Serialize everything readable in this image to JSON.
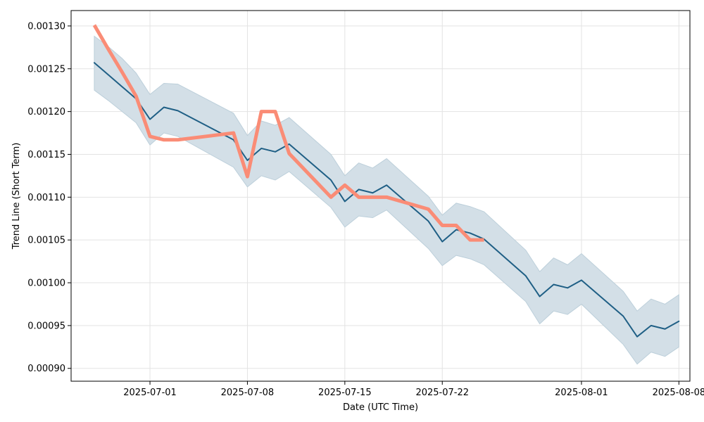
{
  "chart_data": {
    "type": "line",
    "xlabel": "Date (UTC Time)",
    "ylabel": "Trend Line (Short Term)",
    "x_range": [
      "2025-06-25T08:00",
      "2025-08-08T19:00"
    ],
    "y_range": [
      0.000885,
      0.001318
    ],
    "grid": true,
    "x_ticks": [
      "2025-07-01",
      "2025-07-08",
      "2025-07-15",
      "2025-07-22",
      "2025-08-01",
      "2025-08-08"
    ],
    "y_ticks": [
      "0.00090",
      "0.00095",
      "0.00100",
      "0.00105",
      "0.00110",
      "0.00115",
      "0.00120",
      "0.00125",
      "0.00130"
    ],
    "colors": {
      "band": "#d3dfe7",
      "band_edge": "#bccfda",
      "trend": "#1f5f85",
      "actual": "#fa8c76",
      "grid": "#e3e3e3"
    },
    "series": [
      {
        "role": "band",
        "points": [
          {
            "x": "2025-06-27",
            "low": 0.001225,
            "high": 0.001288
          },
          {
            "x": "2025-06-28",
            "low": 0.001213,
            "high": 0.001276
          },
          {
            "x": "2025-06-29",
            "low": 0.0012,
            "high": 0.001262
          },
          {
            "x": "2025-06-30",
            "low": 0.001187,
            "high": 0.001245
          },
          {
            "x": "2025-07-01",
            "low": 0.001161,
            "high": 0.00122
          },
          {
            "x": "2025-07-02",
            "low": 0.001175,
            "high": 0.001233
          },
          {
            "x": "2025-07-03",
            "low": 0.001171,
            "high": 0.001232
          },
          {
            "x": "2025-07-07",
            "low": 0.001135,
            "high": 0.001198
          },
          {
            "x": "2025-07-08",
            "low": 0.001112,
            "high": 0.001172
          },
          {
            "x": "2025-07-09",
            "low": 0.001125,
            "high": 0.001189
          },
          {
            "x": "2025-07-10",
            "low": 0.00112,
            "high": 0.001184
          },
          {
            "x": "2025-07-11",
            "low": 0.00113,
            "high": 0.001193
          },
          {
            "x": "2025-07-14",
            "low": 0.001088,
            "high": 0.00115
          },
          {
            "x": "2025-07-15",
            "low": 0.001065,
            "high": 0.001125
          },
          {
            "x": "2025-07-16",
            "low": 0.001078,
            "high": 0.00114
          },
          {
            "x": "2025-07-17",
            "low": 0.001076,
            "high": 0.001134
          },
          {
            "x": "2025-07-18",
            "low": 0.001085,
            "high": 0.001145
          },
          {
            "x": "2025-07-21",
            "low": 0.00104,
            "high": 0.001101
          },
          {
            "x": "2025-07-22",
            "low": 0.00102,
            "high": 0.001079
          },
          {
            "x": "2025-07-23",
            "low": 0.001032,
            "high": 0.001093
          },
          {
            "x": "2025-07-24",
            "low": 0.001028,
            "high": 0.001089
          },
          {
            "x": "2025-07-25",
            "low": 0.001021,
            "high": 0.001083
          },
          {
            "x": "2025-07-28",
            "low": 0.000978,
            "high": 0.001038
          },
          {
            "x": "2025-07-29",
            "low": 0.000952,
            "high": 0.001013
          },
          {
            "x": "2025-07-30",
            "low": 0.000967,
            "high": 0.001029
          },
          {
            "x": "2025-07-31",
            "low": 0.000963,
            "high": 0.001021
          },
          {
            "x": "2025-08-01",
            "low": 0.000975,
            "high": 0.001034
          },
          {
            "x": "2025-08-04",
            "low": 0.000928,
            "high": 0.00099
          },
          {
            "x": "2025-08-05",
            "low": 0.000905,
            "high": 0.000967
          },
          {
            "x": "2025-08-06",
            "low": 0.000919,
            "high": 0.000981
          },
          {
            "x": "2025-08-07",
            "low": 0.000914,
            "high": 0.000975
          },
          {
            "x": "2025-08-08",
            "low": 0.000925,
            "high": 0.000986
          }
        ]
      },
      {
        "role": "trend",
        "points": [
          {
            "x": "2025-06-27",
            "y": 0.001257
          },
          {
            "x": "2025-06-28",
            "y": 0.001243
          },
          {
            "x": "2025-06-29",
            "y": 0.001229
          },
          {
            "x": "2025-06-30",
            "y": 0.001215
          },
          {
            "x": "2025-07-01",
            "y": 0.001191
          },
          {
            "x": "2025-07-02",
            "y": 0.001205
          },
          {
            "x": "2025-07-03",
            "y": 0.001201
          },
          {
            "x": "2025-07-07",
            "y": 0.001167
          },
          {
            "x": "2025-07-08",
            "y": 0.001143
          },
          {
            "x": "2025-07-09",
            "y": 0.001157
          },
          {
            "x": "2025-07-10",
            "y": 0.001153
          },
          {
            "x": "2025-07-11",
            "y": 0.001162
          },
          {
            "x": "2025-07-14",
            "y": 0.00112
          },
          {
            "x": "2025-07-15",
            "y": 0.001095
          },
          {
            "x": "2025-07-16",
            "y": 0.001109
          },
          {
            "x": "2025-07-17",
            "y": 0.001105
          },
          {
            "x": "2025-07-18",
            "y": 0.001114
          },
          {
            "x": "2025-07-21",
            "y": 0.001072
          },
          {
            "x": "2025-07-22",
            "y": 0.001048
          },
          {
            "x": "2025-07-23",
            "y": 0.001062
          },
          {
            "x": "2025-07-24",
            "y": 0.001058
          },
          {
            "x": "2025-07-25",
            "y": 0.001051
          },
          {
            "x": "2025-07-28",
            "y": 0.001008
          },
          {
            "x": "2025-07-29",
            "y": 0.000984
          },
          {
            "x": "2025-07-30",
            "y": 0.000998
          },
          {
            "x": "2025-07-31",
            "y": 0.000994
          },
          {
            "x": "2025-08-01",
            "y": 0.001003
          },
          {
            "x": "2025-08-04",
            "y": 0.000961
          },
          {
            "x": "2025-08-05",
            "y": 0.000937
          },
          {
            "x": "2025-08-06",
            "y": 0.00095
          },
          {
            "x": "2025-08-07",
            "y": 0.000946
          },
          {
            "x": "2025-08-08",
            "y": 0.000955
          }
        ]
      },
      {
        "role": "actual",
        "points": [
          {
            "x": "2025-06-27",
            "y": 0.001301
          },
          {
            "x": "2025-06-28",
            "y": 0.001273
          },
          {
            "x": "2025-06-29",
            "y": 0.001246
          },
          {
            "x": "2025-06-30",
            "y": 0.001218
          },
          {
            "x": "2025-07-01",
            "y": 0.001171
          },
          {
            "x": "2025-07-02",
            "y": 0.001167
          },
          {
            "x": "2025-07-03",
            "y": 0.001167
          },
          {
            "x": "2025-07-07",
            "y": 0.001175
          },
          {
            "x": "2025-07-08",
            "y": 0.001124
          },
          {
            "x": "2025-07-09",
            "y": 0.0012
          },
          {
            "x": "2025-07-10",
            "y": 0.0012
          },
          {
            "x": "2025-07-11",
            "y": 0.001151
          },
          {
            "x": "2025-07-14",
            "y": 0.0011
          },
          {
            "x": "2025-07-15",
            "y": 0.001114
          },
          {
            "x": "2025-07-16",
            "y": 0.0011
          },
          {
            "x": "2025-07-17",
            "y": 0.0011
          },
          {
            "x": "2025-07-18",
            "y": 0.0011
          },
          {
            "x": "2025-07-21",
            "y": 0.001086
          },
          {
            "x": "2025-07-22",
            "y": 0.001067
          },
          {
            "x": "2025-07-23",
            "y": 0.001067
          },
          {
            "x": "2025-07-24",
            "y": 0.00105
          },
          {
            "x": "2025-07-25",
            "y": 0.00105
          }
        ]
      }
    ]
  }
}
